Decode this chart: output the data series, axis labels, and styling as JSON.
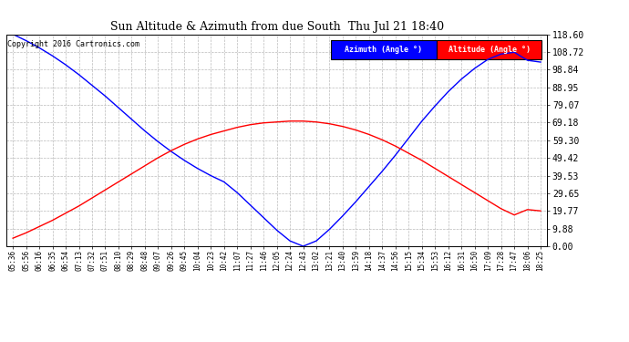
{
  "title": "Sun Altitude & Azimuth from due South  Thu Jul 21 18:40",
  "copyright": "Copyright 2016 Cartronics.com",
  "legend_azimuth": "Azimuth (Angle °)",
  "legend_altitude": "Altitude (Angle °)",
  "azimuth_color": "#0000ff",
  "altitude_color": "#ff0000",
  "bg_color": "#ffffff",
  "grid_color": "#bbbbbb",
  "yticks": [
    0.0,
    9.88,
    19.77,
    29.65,
    39.53,
    49.42,
    59.3,
    69.18,
    79.07,
    88.95,
    98.84,
    108.72,
    118.6
  ],
  "ymin": 0.0,
  "ymax": 118.6,
  "xtick_labels": [
    "05:36",
    "05:56",
    "06:16",
    "06:35",
    "06:54",
    "07:13",
    "07:32",
    "07:51",
    "08:10",
    "08:29",
    "08:48",
    "09:07",
    "09:26",
    "09:45",
    "10:04",
    "10:23",
    "10:42",
    "11:07",
    "11:27",
    "11:46",
    "12:05",
    "12:24",
    "12:43",
    "13:02",
    "13:21",
    "13:40",
    "13:59",
    "14:18",
    "14:37",
    "14:56",
    "15:15",
    "15:34",
    "15:53",
    "16:12",
    "16:31",
    "16:50",
    "17:09",
    "17:28",
    "17:47",
    "18:06",
    "18:25"
  ],
  "azimuth_values": [
    118.6,
    115.0,
    111.0,
    106.5,
    101.5,
    96.0,
    90.0,
    84.0,
    77.5,
    71.0,
    64.5,
    58.5,
    53.0,
    48.0,
    43.5,
    39.5,
    36.0,
    30.0,
    23.0,
    16.0,
    9.0,
    3.0,
    0.0,
    3.0,
    9.5,
    17.0,
    25.0,
    33.5,
    42.0,
    51.0,
    60.5,
    70.0,
    78.5,
    86.5,
    93.5,
    99.5,
    104.5,
    107.5,
    108.5,
    104.0,
    103.0
  ],
  "altitude_values": [
    4.5,
    7.5,
    11.0,
    14.5,
    18.5,
    22.5,
    27.0,
    31.5,
    36.0,
    40.5,
    45.0,
    49.5,
    53.5,
    57.0,
    60.0,
    62.5,
    64.5,
    66.5,
    68.0,
    69.0,
    69.5,
    70.0,
    70.0,
    69.5,
    68.5,
    67.0,
    65.0,
    62.5,
    59.5,
    56.0,
    52.0,
    48.0,
    43.5,
    39.0,
    34.5,
    30.0,
    25.5,
    21.0,
    17.5,
    20.5,
    19.77
  ]
}
